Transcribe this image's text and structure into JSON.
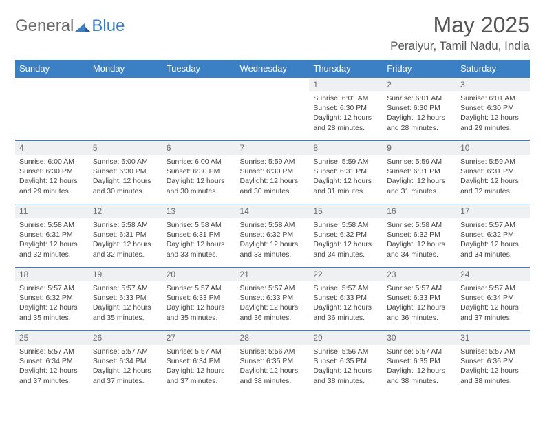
{
  "brand": {
    "part1": "General",
    "part2": "Blue"
  },
  "title": "May 2025",
  "location": "Peraiyur, Tamil Nadu, India",
  "colors": {
    "header_bg": "#3b7fc4",
    "header_text": "#ffffff",
    "daynum_bg": "#eef0f1",
    "border": "#3b7fc4",
    "title_color": "#555555",
    "body_text": "#444444"
  },
  "weekdays": [
    "Sunday",
    "Monday",
    "Tuesday",
    "Wednesday",
    "Thursday",
    "Friday",
    "Saturday"
  ],
  "weeks": [
    [
      {
        "empty": true
      },
      {
        "empty": true
      },
      {
        "empty": true
      },
      {
        "empty": true
      },
      {
        "num": "1",
        "sunrise": "Sunrise: 6:01 AM",
        "sunset": "Sunset: 6:30 PM",
        "daylight": "Daylight: 12 hours and 28 minutes."
      },
      {
        "num": "2",
        "sunrise": "Sunrise: 6:01 AM",
        "sunset": "Sunset: 6:30 PM",
        "daylight": "Daylight: 12 hours and 28 minutes."
      },
      {
        "num": "3",
        "sunrise": "Sunrise: 6:01 AM",
        "sunset": "Sunset: 6:30 PM",
        "daylight": "Daylight: 12 hours and 29 minutes."
      }
    ],
    [
      {
        "num": "4",
        "sunrise": "Sunrise: 6:00 AM",
        "sunset": "Sunset: 6:30 PM",
        "daylight": "Daylight: 12 hours and 29 minutes."
      },
      {
        "num": "5",
        "sunrise": "Sunrise: 6:00 AM",
        "sunset": "Sunset: 6:30 PM",
        "daylight": "Daylight: 12 hours and 30 minutes."
      },
      {
        "num": "6",
        "sunrise": "Sunrise: 6:00 AM",
        "sunset": "Sunset: 6:30 PM",
        "daylight": "Daylight: 12 hours and 30 minutes."
      },
      {
        "num": "7",
        "sunrise": "Sunrise: 5:59 AM",
        "sunset": "Sunset: 6:30 PM",
        "daylight": "Daylight: 12 hours and 30 minutes."
      },
      {
        "num": "8",
        "sunrise": "Sunrise: 5:59 AM",
        "sunset": "Sunset: 6:31 PM",
        "daylight": "Daylight: 12 hours and 31 minutes."
      },
      {
        "num": "9",
        "sunrise": "Sunrise: 5:59 AM",
        "sunset": "Sunset: 6:31 PM",
        "daylight": "Daylight: 12 hours and 31 minutes."
      },
      {
        "num": "10",
        "sunrise": "Sunrise: 5:59 AM",
        "sunset": "Sunset: 6:31 PM",
        "daylight": "Daylight: 12 hours and 32 minutes."
      }
    ],
    [
      {
        "num": "11",
        "sunrise": "Sunrise: 5:58 AM",
        "sunset": "Sunset: 6:31 PM",
        "daylight": "Daylight: 12 hours and 32 minutes."
      },
      {
        "num": "12",
        "sunrise": "Sunrise: 5:58 AM",
        "sunset": "Sunset: 6:31 PM",
        "daylight": "Daylight: 12 hours and 32 minutes."
      },
      {
        "num": "13",
        "sunrise": "Sunrise: 5:58 AM",
        "sunset": "Sunset: 6:31 PM",
        "daylight": "Daylight: 12 hours and 33 minutes."
      },
      {
        "num": "14",
        "sunrise": "Sunrise: 5:58 AM",
        "sunset": "Sunset: 6:32 PM",
        "daylight": "Daylight: 12 hours and 33 minutes."
      },
      {
        "num": "15",
        "sunrise": "Sunrise: 5:58 AM",
        "sunset": "Sunset: 6:32 PM",
        "daylight": "Daylight: 12 hours and 34 minutes."
      },
      {
        "num": "16",
        "sunrise": "Sunrise: 5:58 AM",
        "sunset": "Sunset: 6:32 PM",
        "daylight": "Daylight: 12 hours and 34 minutes."
      },
      {
        "num": "17",
        "sunrise": "Sunrise: 5:57 AM",
        "sunset": "Sunset: 6:32 PM",
        "daylight": "Daylight: 12 hours and 34 minutes."
      }
    ],
    [
      {
        "num": "18",
        "sunrise": "Sunrise: 5:57 AM",
        "sunset": "Sunset: 6:32 PM",
        "daylight": "Daylight: 12 hours and 35 minutes."
      },
      {
        "num": "19",
        "sunrise": "Sunrise: 5:57 AM",
        "sunset": "Sunset: 6:33 PM",
        "daylight": "Daylight: 12 hours and 35 minutes."
      },
      {
        "num": "20",
        "sunrise": "Sunrise: 5:57 AM",
        "sunset": "Sunset: 6:33 PM",
        "daylight": "Daylight: 12 hours and 35 minutes."
      },
      {
        "num": "21",
        "sunrise": "Sunrise: 5:57 AM",
        "sunset": "Sunset: 6:33 PM",
        "daylight": "Daylight: 12 hours and 36 minutes."
      },
      {
        "num": "22",
        "sunrise": "Sunrise: 5:57 AM",
        "sunset": "Sunset: 6:33 PM",
        "daylight": "Daylight: 12 hours and 36 minutes."
      },
      {
        "num": "23",
        "sunrise": "Sunrise: 5:57 AM",
        "sunset": "Sunset: 6:33 PM",
        "daylight": "Daylight: 12 hours and 36 minutes."
      },
      {
        "num": "24",
        "sunrise": "Sunrise: 5:57 AM",
        "sunset": "Sunset: 6:34 PM",
        "daylight": "Daylight: 12 hours and 37 minutes."
      }
    ],
    [
      {
        "num": "25",
        "sunrise": "Sunrise: 5:57 AM",
        "sunset": "Sunset: 6:34 PM",
        "daylight": "Daylight: 12 hours and 37 minutes."
      },
      {
        "num": "26",
        "sunrise": "Sunrise: 5:57 AM",
        "sunset": "Sunset: 6:34 PM",
        "daylight": "Daylight: 12 hours and 37 minutes."
      },
      {
        "num": "27",
        "sunrise": "Sunrise: 5:57 AM",
        "sunset": "Sunset: 6:34 PM",
        "daylight": "Daylight: 12 hours and 37 minutes."
      },
      {
        "num": "28",
        "sunrise": "Sunrise: 5:56 AM",
        "sunset": "Sunset: 6:35 PM",
        "daylight": "Daylight: 12 hours and 38 minutes."
      },
      {
        "num": "29",
        "sunrise": "Sunrise: 5:56 AM",
        "sunset": "Sunset: 6:35 PM",
        "daylight": "Daylight: 12 hours and 38 minutes."
      },
      {
        "num": "30",
        "sunrise": "Sunrise: 5:57 AM",
        "sunset": "Sunset: 6:35 PM",
        "daylight": "Daylight: 12 hours and 38 minutes."
      },
      {
        "num": "31",
        "sunrise": "Sunrise: 5:57 AM",
        "sunset": "Sunset: 6:36 PM",
        "daylight": "Daylight: 12 hours and 38 minutes."
      }
    ]
  ]
}
